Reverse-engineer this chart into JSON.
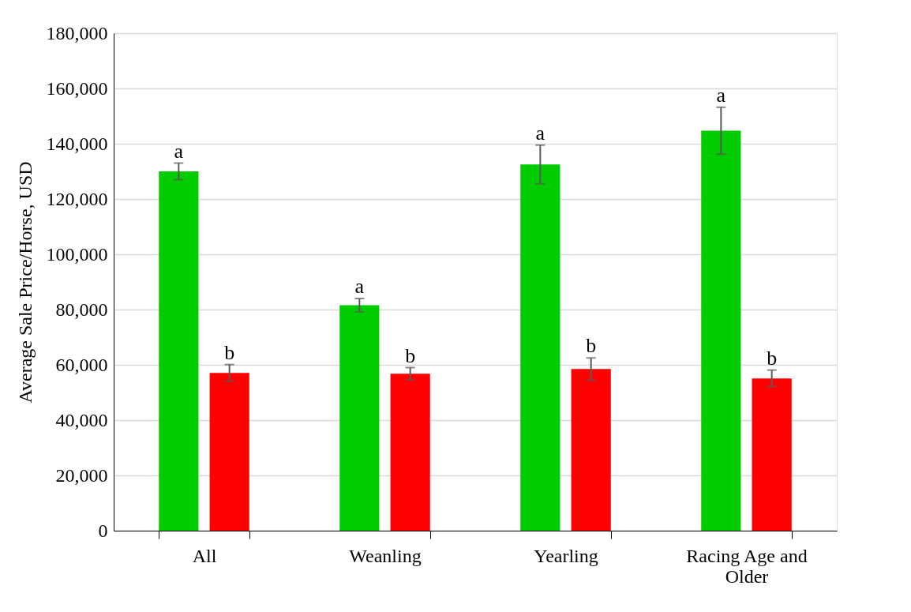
{
  "chart_data": {
    "type": "bar",
    "ylabel": "Average Sale Price/Horse, USD",
    "categories": [
      "All",
      "Weanling",
      "Yearling",
      "Racing Age and Older"
    ],
    "series": [
      {
        "color": "#00cc00",
        "values": [
          130000,
          81600,
          132500,
          144700
        ],
        "errors": [
          3000,
          2400,
          7000,
          8500
        ]
      },
      {
        "color": "#ff0000",
        "values": [
          57100,
          56800,
          58500,
          55100
        ],
        "errors": [
          3000,
          2200,
          4000,
          3000
        ]
      }
    ],
    "ylim": [
      0,
      180000
    ],
    "yticks": [
      0,
      {
        "value": 20000,
        "label": "20,000"
      },
      {
        "value": 40000,
        "label": "40,000"
      },
      {
        "value": 60000,
        "label": "60,000"
      },
      {
        "value": 80000,
        "label": "80,000"
      },
      {
        "value": 100000,
        "label": "100,000"
      },
      {
        "value": 120000,
        "label": "120,000"
      },
      {
        "value": 140000,
        "label": "140,000"
      },
      {
        "value": 160000,
        "label": "160,000"
      },
      {
        "value": 180000,
        "label": "180,000"
      }
    ],
    "grid": "y",
    "legend": false,
    "annotations": [
      "a",
      "b",
      "a",
      "b",
      "a",
      "b",
      "a",
      "b"
    ]
  }
}
